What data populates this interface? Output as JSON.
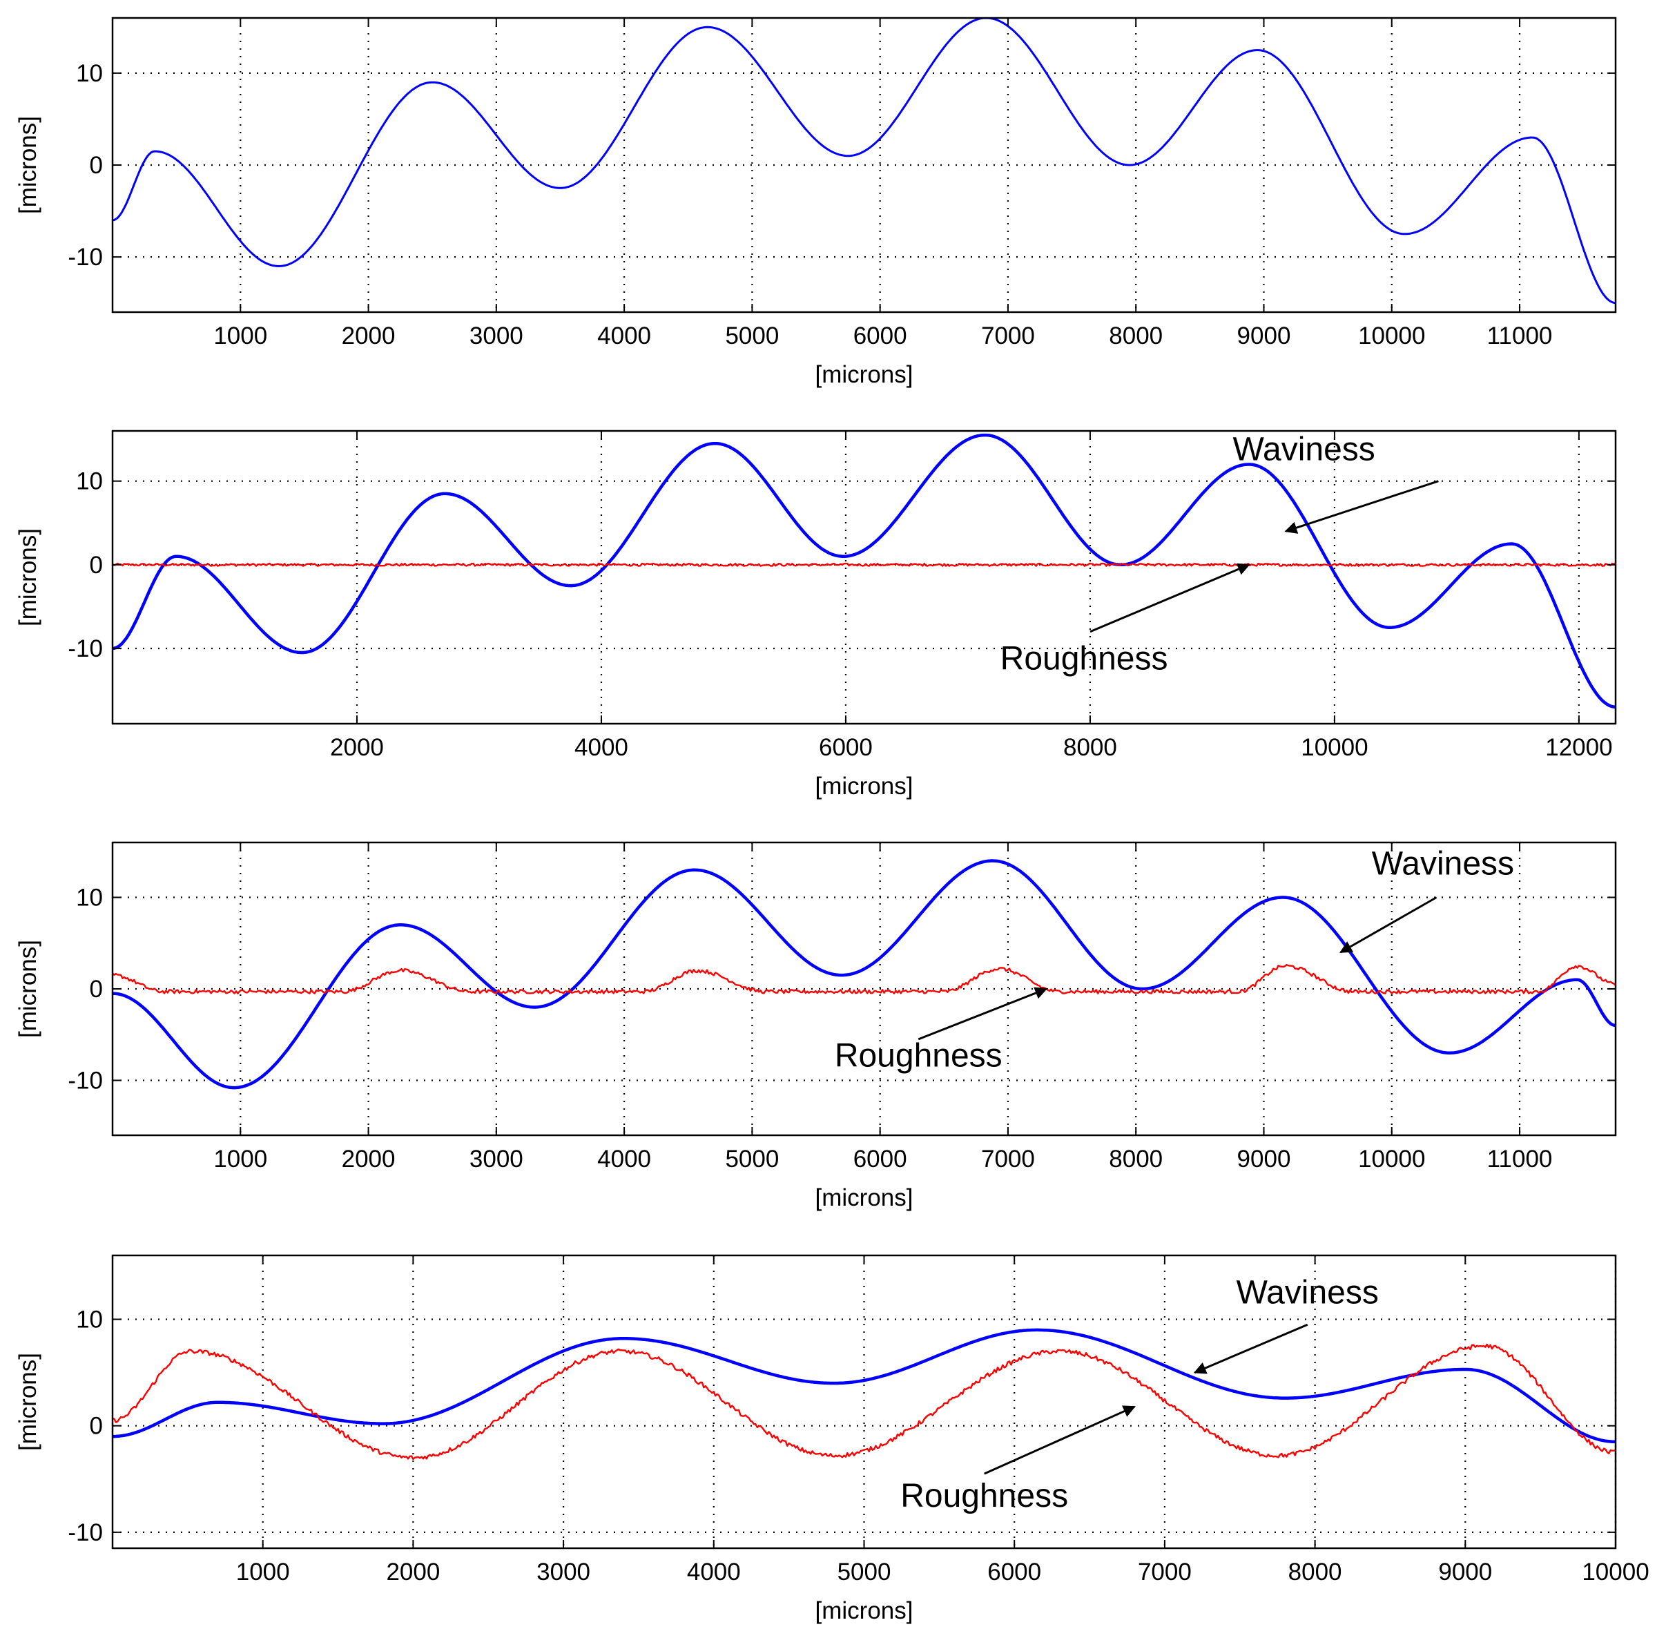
{
  "chart_data": [
    {
      "type": "line",
      "xlabel": "[microns]",
      "ylabel": "[microns]",
      "xlim": [
        0,
        11750
      ],
      "ylim": [
        -16,
        16
      ],
      "xticks": [
        1000,
        2000,
        3000,
        4000,
        5000,
        6000,
        7000,
        8000,
        9000,
        10000,
        11000
      ],
      "xtick_labels": [
        "1000",
        "2000",
        "3000",
        "4000",
        "5000",
        "6000",
        "7000",
        "8000",
        "9000",
        "10000",
        "11000"
      ],
      "yticks": [
        -10,
        0,
        10
      ],
      "ytick_labels": [
        "-10",
        "0",
        "10"
      ],
      "grid": true,
      "series": [
        {
          "color": "#0000ff",
          "x": [
            0,
            330,
            1300,
            2500,
            3500,
            4650,
            5750,
            6830,
            7950,
            8950,
            10100,
            11100,
            11750
          ],
          "y": [
            -6,
            1.5,
            -11,
            9,
            -2.5,
            15,
            1,
            16,
            0,
            12.5,
            -7.5,
            3,
            -15
          ]
        }
      ],
      "annotations": []
    },
    {
      "type": "line",
      "xlabel": "[microns]",
      "ylabel": "[microns]",
      "xlim": [
        0,
        12300
      ],
      "ylim": [
        -19,
        16
      ],
      "xticks": [
        2000,
        4000,
        6000,
        8000,
        10000,
        12000
      ],
      "xtick_labels": [
        "2000",
        "4000",
        "6000",
        "8000",
        "10000",
        "12000"
      ],
      "yticks": [
        -10,
        0,
        10
      ],
      "ytick_labels": [
        "-10",
        "0",
        "10"
      ],
      "grid": true,
      "series": [
        {
          "color": "#0000ff",
          "x": [
            0,
            520,
            1550,
            2720,
            3750,
            4930,
            5980,
            7140,
            8250,
            9300,
            10450,
            11450,
            12300
          ],
          "y": [
            -10,
            1,
            -10.5,
            8.5,
            -2.5,
            14.5,
            1,
            15.5,
            0,
            12,
            -7.5,
            2.5,
            -17
          ]
        },
        {
          "color": "#ff0000",
          "x": [
            0,
            12300
          ],
          "y": [
            0,
            0
          ],
          "noise": 0.15
        }
      ],
      "annotations": [
        {
          "text": "Waviness",
          "text_x": 9750,
          "text_y": 12.5,
          "arrow_from": [
            10850,
            10
          ],
          "arrow_to": [
            9600,
            4
          ]
        },
        {
          "text": "Roughness",
          "text_x": 7950,
          "text_y": -12.5,
          "arrow_from": [
            8000,
            -8
          ],
          "arrow_to": [
            9300,
            0
          ]
        }
      ]
    },
    {
      "type": "line",
      "xlabel": "[microns]",
      "ylabel": "[microns]",
      "xlim": [
        0,
        11750
      ],
      "ylim": [
        -16,
        16
      ],
      "xticks": [
        1000,
        2000,
        3000,
        4000,
        5000,
        6000,
        7000,
        8000,
        9000,
        10000,
        11000
      ],
      "xtick_labels": [
        "1000",
        "2000",
        "3000",
        "4000",
        "5000",
        "6000",
        "7000",
        "8000",
        "9000",
        "10000",
        "11000"
      ],
      "yticks": [
        -10,
        0,
        10
      ],
      "ytick_labels": [
        "-10",
        "0",
        "10"
      ],
      "grid": true,
      "series": [
        {
          "color": "#0000ff",
          "x": [
            0,
            950,
            2250,
            3300,
            4550,
            5700,
            6880,
            8050,
            9150,
            10450,
            11450,
            11750
          ],
          "y": [
            -0.5,
            -10.8,
            7,
            -2,
            13,
            1.5,
            14,
            0,
            10,
            -7,
            1,
            -4
          ]
        },
        {
          "color": "#ff0000",
          "x": [
            0,
            400,
            1800,
            2250,
            2800,
            4150,
            4570,
            5100,
            6500,
            6930,
            7400,
            8800,
            9170,
            9700,
            11150,
            11450,
            11750
          ],
          "y": [
            1.5,
            -0.3,
            -0.3,
            2,
            -0.3,
            -0.3,
            2,
            -0.3,
            -0.3,
            2.2,
            -0.3,
            -0.3,
            2.5,
            -0.3,
            -0.3,
            2.5,
            0.5
          ],
          "noise": 0.2
        }
      ],
      "annotations": [
        {
          "text": "Waviness",
          "text_x": 10400,
          "text_y": 12.5,
          "arrow_from": [
            10350,
            10
          ],
          "arrow_to": [
            9600,
            4
          ]
        },
        {
          "text": "Roughness",
          "text_x": 6300,
          "text_y": -8.5,
          "arrow_from": [
            6300,
            -5.5
          ],
          "arrow_to": [
            7300,
            0
          ]
        }
      ]
    },
    {
      "type": "line",
      "xlabel": "[microns]",
      "ylabel": "[microns]",
      "xlim": [
        0,
        10000
      ],
      "ylim": [
        -11.5,
        16
      ],
      "xticks": [
        1000,
        2000,
        3000,
        4000,
        5000,
        6000,
        7000,
        8000,
        9000,
        10000
      ],
      "xtick_labels": [
        "1000",
        "2000",
        "3000",
        "4000",
        "5000",
        "6000",
        "7000",
        "8000",
        "9000",
        "10000"
      ],
      "yticks": [
        -10,
        0,
        10
      ],
      "ytick_labels": [
        "-10",
        "0",
        "10"
      ],
      "grid": true,
      "series": [
        {
          "color": "#0000ff",
          "x": [
            0,
            700,
            1800,
            3400,
            4800,
            6150,
            7800,
            9000,
            10000
          ],
          "y": [
            -1,
            2.2,
            0.2,
            8.2,
            4,
            9,
            2.6,
            5.3,
            -1.5
          ]
        },
        {
          "color": "#ff0000",
          "x": [
            0,
            520,
            2000,
            3380,
            4800,
            6300,
            7750,
            9130,
            10000
          ],
          "y": [
            0.5,
            7,
            -3,
            7,
            -2.8,
            7,
            -2.8,
            7.5,
            -2.5
          ],
          "noise": 0.2
        }
      ],
      "annotations": [
        {
          "text": "Waviness",
          "text_x": 7950,
          "text_y": 11.5,
          "arrow_from": [
            7950,
            9.5
          ],
          "arrow_to": [
            7200,
            5
          ]
        },
        {
          "text": "Roughness",
          "text_x": 5800,
          "text_y": -7.6,
          "arrow_from": [
            5800,
            -4.5
          ],
          "arrow_to": [
            6800,
            1.8
          ]
        }
      ]
    }
  ]
}
